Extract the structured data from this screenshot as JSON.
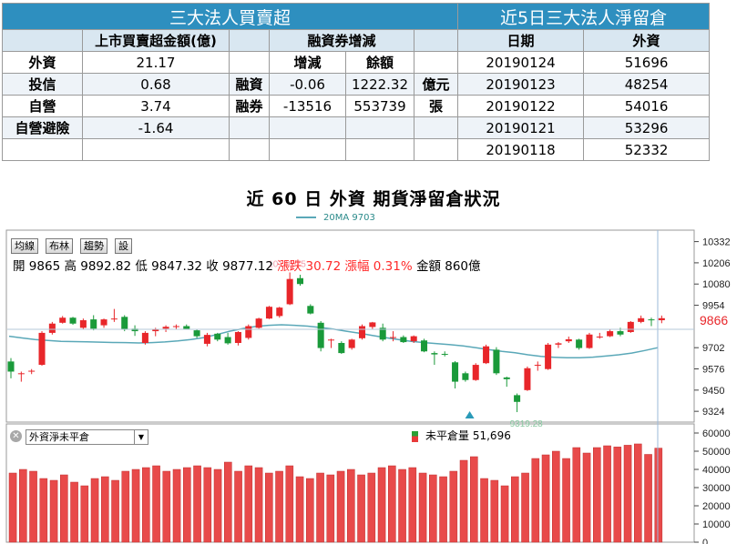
{
  "table_left": {
    "title": "三大法人買賣超",
    "col_header": "上市買賣超金額(億)",
    "rows": [
      {
        "label": "外資",
        "value": "21.17"
      },
      {
        "label": "投信",
        "value": "0.68"
      },
      {
        "label": "自營",
        "value": "3.74"
      },
      {
        "label": "自營避險",
        "value": "-1.64"
      }
    ]
  },
  "table_margin": {
    "title": "融資券增減",
    "col_change": "增減",
    "col_balance": "餘額",
    "rows": [
      {
        "label": "融資",
        "change": "-0.06",
        "balance": "1222.32",
        "unit": "億元"
      },
      {
        "label": "融券",
        "change": "-13516",
        "balance": "553739",
        "unit": "張"
      }
    ]
  },
  "table_right": {
    "title": "近5日三大法人淨留倉",
    "col_date": "日期",
    "col_foreign": "外資",
    "rows": [
      {
        "date": "20190124",
        "value": "51696"
      },
      {
        "date": "20190123",
        "value": "48254"
      },
      {
        "date": "20190122",
        "value": "54016"
      },
      {
        "date": "20190121",
        "value": "53296"
      },
      {
        "date": "20190118",
        "value": "52332"
      }
    ]
  },
  "chart_title": "近 60 日 外資 期貨淨留倉狀況",
  "toolbar": {
    "btn1": "均線",
    "btn2": "布林",
    "btn3": "趨勢",
    "btn4": "設"
  },
  "ohlc": {
    "open_label": "開",
    "open": "9865",
    "high_label": "高",
    "high": "9892.82",
    "low_label": "低",
    "low": "9847.32",
    "close_label": "收",
    "close": "9877.12",
    "chg_label": "漲跌",
    "chg": "30.72",
    "pct_label": "漲幅",
    "pct": "0.31%",
    "amt_label": "金額",
    "amt": "860億"
  },
  "selector": {
    "value": "外資淨未平倉"
  },
  "oi_legend": {
    "label": "未平倉量",
    "value": "51,696"
  },
  "colors": {
    "up": "#e8262a",
    "down": "#1a9a3a",
    "ma": "#5aa8b8",
    "oi_bar": "#e84a4a",
    "header": "#2e8fbf"
  },
  "chart_data": [
    {
      "type": "candlestick",
      "title": "近 60 日 外資 期貨淨留倉狀況",
      "ma_label": "20MA 9703",
      "ylim": [
        9260,
        10400
      ],
      "yticks": [
        10332,
        10206,
        10080,
        9954,
        9702,
        9576,
        9450,
        9324
      ],
      "last_price_label": "9866",
      "high_annotation": "10148.75",
      "low_annotation": "9319.28",
      "candles": [
        {
          "o": 9620,
          "h": 9640,
          "l": 9520,
          "c": 9560
        },
        {
          "o": 9548,
          "h": 9560,
          "l": 9500,
          "c": 9550
        },
        {
          "o": 9560,
          "h": 9575,
          "l": 9545,
          "c": 9565
        },
        {
          "o": 9600,
          "h": 9800,
          "l": 9595,
          "c": 9790
        },
        {
          "o": 9790,
          "h": 9855,
          "l": 9780,
          "c": 9845
        },
        {
          "o": 9850,
          "h": 9890,
          "l": 9845,
          "c": 9880
        },
        {
          "o": 9880,
          "h": 9885,
          "l": 9838,
          "c": 9845
        },
        {
          "o": 9820,
          "h": 9875,
          "l": 9810,
          "c": 9865
        },
        {
          "o": 9870,
          "h": 9895,
          "l": 9805,
          "c": 9815
        },
        {
          "o": 9835,
          "h": 9875,
          "l": 9820,
          "c": 9870
        },
        {
          "o": 9870,
          "h": 9932,
          "l": 9855,
          "c": 9875
        },
        {
          "o": 9885,
          "h": 9895,
          "l": 9800,
          "c": 9810
        },
        {
          "o": 9815,
          "h": 9835,
          "l": 9772,
          "c": 9800
        },
        {
          "o": 9730,
          "h": 9800,
          "l": 9720,
          "c": 9790
        },
        {
          "o": 9800,
          "h": 9820,
          "l": 9770,
          "c": 9812
        },
        {
          "o": 9815,
          "h": 9835,
          "l": 9795,
          "c": 9826
        },
        {
          "o": 9830,
          "h": 9840,
          "l": 9810,
          "c": 9830
        },
        {
          "o": 9830,
          "h": 9840,
          "l": 9810,
          "c": 9814
        },
        {
          "o": 9805,
          "h": 9810,
          "l": 9760,
          "c": 9770
        },
        {
          "o": 9725,
          "h": 9790,
          "l": 9710,
          "c": 9778
        },
        {
          "o": 9785,
          "h": 9790,
          "l": 9740,
          "c": 9750
        },
        {
          "o": 9765,
          "h": 9790,
          "l": 9720,
          "c": 9728
        },
        {
          "o": 9730,
          "h": 9800,
          "l": 9715,
          "c": 9795
        },
        {
          "o": 9760,
          "h": 9840,
          "l": 9750,
          "c": 9830
        },
        {
          "o": 9820,
          "h": 9880,
          "l": 9815,
          "c": 9875
        },
        {
          "o": 9875,
          "h": 9950,
          "l": 9872,
          "c": 9945
        },
        {
          "o": 9890,
          "h": 9945,
          "l": 9880,
          "c": 9940
        },
        {
          "o": 9960,
          "h": 10148.75,
          "l": 9955,
          "c": 10110
        },
        {
          "o": 10115,
          "h": 10135,
          "l": 10070,
          "c": 10080
        },
        {
          "o": 9950,
          "h": 9960,
          "l": 9900,
          "c": 9905
        },
        {
          "o": 9850,
          "h": 9860,
          "l": 9680,
          "c": 9700
        },
        {
          "o": 9745,
          "h": 9755,
          "l": 9700,
          "c": 9750
        },
        {
          "o": 9730,
          "h": 9740,
          "l": 9665,
          "c": 9670
        },
        {
          "o": 9700,
          "h": 9755,
          "l": 9690,
          "c": 9750
        },
        {
          "o": 9758,
          "h": 9840,
          "l": 9750,
          "c": 9830
        },
        {
          "o": 9825,
          "h": 9855,
          "l": 9810,
          "c": 9852
        },
        {
          "o": 9820,
          "h": 9845,
          "l": 9740,
          "c": 9750
        },
        {
          "o": 9762,
          "h": 9800,
          "l": 9740,
          "c": 9765
        },
        {
          "o": 9765,
          "h": 9775,
          "l": 9730,
          "c": 9735
        },
        {
          "o": 9740,
          "h": 9775,
          "l": 9730,
          "c": 9770
        },
        {
          "o": 9745,
          "h": 9755,
          "l": 9675,
          "c": 9680
        },
        {
          "o": 9670,
          "h": 9680,
          "l": 9600,
          "c": 9662
        },
        {
          "o": 9665,
          "h": 9680,
          "l": 9650,
          "c": 9662
        },
        {
          "o": 9615,
          "h": 9622,
          "l": 9460,
          "c": 9500
        },
        {
          "o": 9550,
          "h": 9560,
          "l": 9500,
          "c": 9510
        },
        {
          "o": 9510,
          "h": 9610,
          "l": 9505,
          "c": 9600
        },
        {
          "o": 9610,
          "h": 9720,
          "l": 9605,
          "c": 9710
        },
        {
          "o": 9690,
          "h": 9705,
          "l": 9540,
          "c": 9550
        },
        {
          "o": 9525,
          "h": 9530,
          "l": 9470,
          "c": 9515
        },
        {
          "o": 9420,
          "h": 9430,
          "l": 9319.28,
          "c": 9380
        },
        {
          "o": 9450,
          "h": 9590,
          "l": 9445,
          "c": 9580
        },
        {
          "o": 9600,
          "h": 9620,
          "l": 9565,
          "c": 9600
        },
        {
          "o": 9575,
          "h": 9730,
          "l": 9570,
          "c": 9720
        },
        {
          "o": 9720,
          "h": 9735,
          "l": 9700,
          "c": 9728
        },
        {
          "o": 9740,
          "h": 9768,
          "l": 9730,
          "c": 9752
        },
        {
          "o": 9750,
          "h": 9755,
          "l": 9690,
          "c": 9700
        },
        {
          "o": 9700,
          "h": 9790,
          "l": 9695,
          "c": 9780
        },
        {
          "o": 9765,
          "h": 9790,
          "l": 9755,
          "c": 9768
        },
        {
          "o": 9770,
          "h": 9810,
          "l": 9765,
          "c": 9800
        },
        {
          "o": 9800,
          "h": 9820,
          "l": 9770,
          "c": 9780
        },
        {
          "o": 9795,
          "h": 9860,
          "l": 9790,
          "c": 9855
        },
        {
          "o": 9855,
          "h": 9892.82,
          "l": 9847.32,
          "c": 9877.12
        },
        {
          "o": 9870,
          "h": 9880,
          "l": 9830,
          "c": 9865
        },
        {
          "o": 9865,
          "h": 9892.82,
          "l": 9847.32,
          "c": 9877.12
        }
      ],
      "ma20": [
        9770,
        9760,
        9750,
        9745,
        9740,
        9738,
        9737,
        9735,
        9733,
        9732,
        9730,
        9732,
        9736,
        9742,
        9750,
        9762,
        9780,
        9800,
        9815,
        9828,
        9835,
        9838,
        9835,
        9830,
        9822,
        9812,
        9800,
        9788,
        9775,
        9762,
        9750,
        9740,
        9732,
        9726,
        9720,
        9712,
        9702,
        9690,
        9680,
        9672,
        9660,
        9650,
        9645,
        9642,
        9642,
        9646,
        9652,
        9660,
        9670,
        9685,
        9702
      ]
    },
    {
      "type": "bar",
      "title": "外資淨未平倉",
      "legend": "未平倉量",
      "ylim": [
        0,
        65000
      ],
      "yticks": [
        60000,
        50000,
        40000,
        30000,
        20000,
        10000,
        0
      ],
      "values": [
        38000,
        40000,
        39000,
        35000,
        34000,
        37000,
        33000,
        31000,
        35000,
        36000,
        34000,
        39000,
        40000,
        41000,
        42000,
        39000,
        40000,
        41000,
        42000,
        41000,
        40000,
        44000,
        39000,
        42000,
        41000,
        38000,
        39000,
        42000,
        36000,
        35000,
        38000,
        37000,
        39000,
        40000,
        37000,
        38000,
        41000,
        42000,
        40000,
        41000,
        38000,
        37000,
        36000,
        39000,
        45000,
        47000,
        35000,
        34000,
        31000,
        36000,
        38000,
        46000,
        48000,
        50000,
        46000,
        52000,
        49000,
        52000,
        53000,
        52332,
        53296,
        54016,
        48254,
        51696
      ]
    }
  ]
}
